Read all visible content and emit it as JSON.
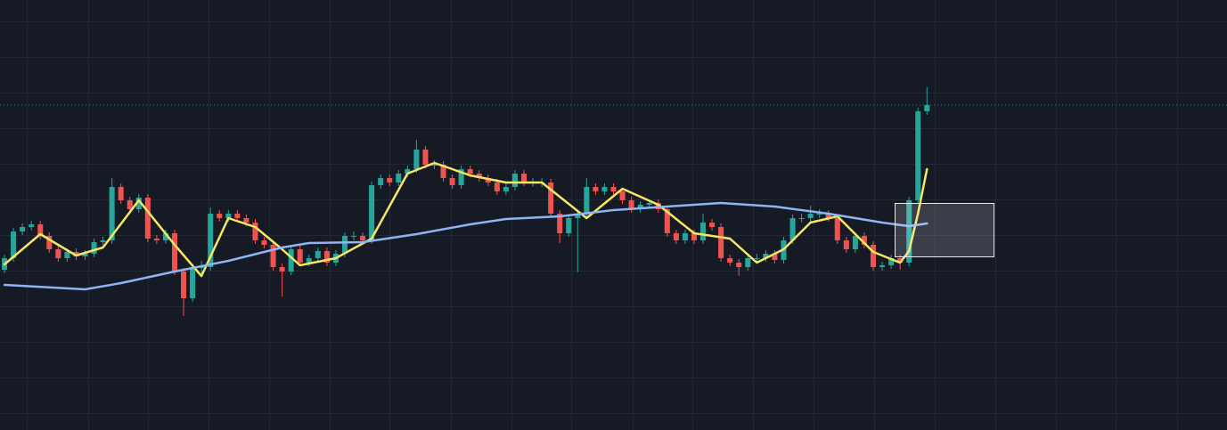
{
  "chart_data": {
    "type": "candlestick",
    "open": [
      180,
      193,
      223,
      228,
      231,
      218,
      203,
      193,
      200,
      195,
      198,
      211,
      213,
      273,
      258,
      248,
      261,
      215,
      213,
      221,
      178,
      148,
      183,
      183,
      243,
      238,
      243,
      238,
      233,
      213,
      208,
      183,
      178,
      203,
      188,
      193,
      201,
      188,
      198,
      218,
      218,
      213,
      275,
      283,
      278,
      288,
      293,
      315,
      298,
      298,
      283,
      275,
      293,
      288,
      283,
      278,
      268,
      273,
      288,
      278,
      278,
      278,
      243,
      221,
      238,
      243,
      273,
      268,
      273,
      268,
      258,
      248,
      253,
      255,
      248,
      221,
      213,
      221,
      213,
      233,
      228,
      193,
      188,
      183,
      193,
      193,
      198,
      191,
      213,
      238,
      238,
      243,
      243,
      238,
      213,
      203,
      218,
      208,
      183,
      185,
      193,
      188,
      258,
      358
    ],
    "high": [
      197,
      227,
      232,
      235,
      235,
      222,
      207,
      204,
      204,
      202,
      215,
      217,
      283,
      277,
      262,
      265,
      265,
      219,
      225,
      225,
      182,
      187,
      190,
      250,
      247,
      247,
      247,
      242,
      237,
      217,
      212,
      187,
      207,
      207,
      197,
      205,
      205,
      202,
      222,
      223,
      222,
      279,
      287,
      287,
      292,
      297,
      326,
      319,
      303,
      302,
      287,
      297,
      297,
      292,
      287,
      282,
      277,
      292,
      292,
      283,
      283,
      282,
      247,
      242,
      247,
      283,
      277,
      277,
      277,
      272,
      262,
      257,
      259,
      259,
      252,
      225,
      225,
      225,
      243,
      237,
      232,
      197,
      192,
      197,
      198,
      202,
      202,
      217,
      242,
      243,
      252,
      248,
      247,
      242,
      217,
      222,
      222,
      212,
      189,
      197,
      197,
      262,
      362,
      385
    ],
    "low": [
      176,
      189,
      219,
      224,
      214,
      199,
      189,
      189,
      191,
      191,
      194,
      207,
      209,
      254,
      244,
      244,
      211,
      209,
      209,
      174,
      128,
      144,
      176,
      179,
      234,
      234,
      234,
      229,
      209,
      204,
      179,
      150,
      174,
      184,
      184,
      189,
      184,
      184,
      194,
      213,
      209,
      209,
      271,
      274,
      274,
      284,
      289,
      294,
      293,
      279,
      271,
      271,
      284,
      279,
      274,
      264,
      264,
      269,
      274,
      273,
      273,
      239,
      210,
      217,
      177,
      239,
      264,
      264,
      264,
      254,
      244,
      244,
      249,
      244,
      217,
      209,
      209,
      209,
      209,
      224,
      189,
      184,
      173,
      179,
      188,
      189,
      187,
      187,
      209,
      233,
      234,
      238,
      234,
      209,
      199,
      199,
      204,
      179,
      179,
      181,
      180,
      184,
      254,
      354
    ],
    "close": [
      193,
      223,
      228,
      231,
      218,
      203,
      193,
      200,
      195,
      198,
      211,
      213,
      273,
      258,
      248,
      261,
      215,
      213,
      221,
      178,
      148,
      183,
      183,
      243,
      238,
      243,
      238,
      233,
      213,
      208,
      183,
      178,
      203,
      188,
      193,
      201,
      188,
      198,
      218,
      218,
      213,
      275,
      283,
      278,
      288,
      293,
      315,
      298,
      298,
      283,
      275,
      293,
      288,
      283,
      278,
      268,
      273,
      288,
      278,
      278,
      278,
      243,
      221,
      238,
      243,
      273,
      268,
      273,
      268,
      258,
      248,
      253,
      255,
      248,
      221,
      213,
      221,
      213,
      233,
      228,
      193,
      188,
      183,
      193,
      193,
      198,
      191,
      213,
      238,
      238,
      243,
      243,
      238,
      213,
      203,
      218,
      208,
      183,
      185,
      193,
      188,
      258,
      358,
      365
    ],
    "up_color": "#26a69a",
    "down_color": "#ef5350",
    "xlim": [
      -0.5,
      136.5
    ],
    "ylim": [
      0,
      483
    ],
    "xticks": [
      2.5,
      9.3,
      16,
      22.8,
      29.5,
      36.3,
      43,
      49.8,
      56.6,
      63.3,
      70.1,
      76.8,
      83.6,
      90.3,
      97.1,
      103.9,
      110.6,
      117.4,
      124.1,
      130.9
    ],
    "yticks": [
      19,
      59,
      99,
      139,
      179,
      219,
      259,
      299,
      339,
      379,
      419,
      459
    ],
    "grid": true,
    "lines": [
      {
        "color": "#f5e663",
        "x": [
          0,
          4,
          8,
          11,
          15,
          19,
          22,
          25,
          28,
          31,
          33,
          37,
          41,
          45,
          48,
          52,
          56,
          60,
          65,
          69,
          73,
          77,
          81,
          84,
          87,
          90,
          93,
          97,
          100,
          101,
          102,
          103
        ],
        "values": [
          186,
          220,
          196,
          205,
          258,
          208,
          173,
          238,
          228,
          203,
          185,
          193,
          215,
          288,
          300,
          286,
          278,
          278,
          238,
          271,
          253,
          221,
          215,
          188,
          203,
          233,
          240,
          200,
          188,
          201,
          243,
          293
        ]
      },
      {
        "color": "#8fb4f3",
        "x": [
          0,
          9,
          13,
          19,
          25,
          31,
          34,
          40,
          46,
          52,
          56,
          62,
          68,
          74,
          80,
          86,
          92,
          98,
          101,
          103
        ],
        "values": [
          163,
          158,
          165,
          178,
          190,
          205,
          210,
          211,
          220,
          231,
          237,
          240,
          247,
          251,
          255,
          251,
          243,
          233,
          229,
          232
        ]
      }
    ]
  }
}
